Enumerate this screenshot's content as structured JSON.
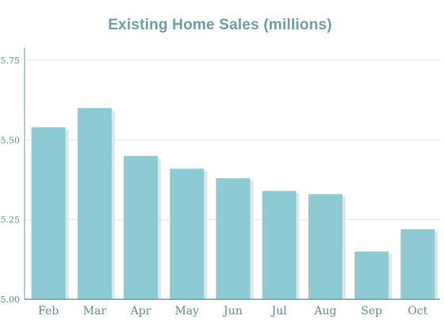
{
  "chart_data": {
    "type": "bar",
    "title": "Existing Home Sales (millions)",
    "categories": [
      "Feb",
      "Mar",
      "Apr",
      "May",
      "Jun",
      "Jul",
      "Aug",
      "Sep",
      "Oct"
    ],
    "values": [
      5.54,
      5.6,
      5.45,
      5.41,
      5.38,
      5.34,
      5.33,
      5.15,
      5.22
    ],
    "xlabel": "",
    "ylabel": "",
    "ylim": [
      5.0,
      5.75
    ],
    "yticks": [
      "5.00",
      "5.25",
      "5.50",
      "5.75"
    ],
    "grid": true,
    "legend": "none",
    "colors": {
      "bar": "#8ccbd3",
      "bar_shadow": "#e4e4e4",
      "title": "#6aa1a6",
      "axis": "#6aa1a6",
      "grid": "#e6e6e6",
      "labels": "#5b8f95"
    }
  }
}
